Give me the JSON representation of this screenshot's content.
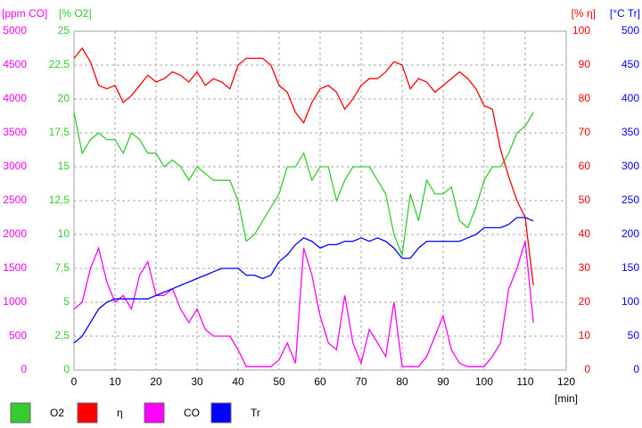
{
  "chart_data": {
    "type": "line",
    "x": [
      0,
      2,
      4,
      6,
      8,
      10,
      12,
      14,
      16,
      18,
      20,
      22,
      24,
      26,
      28,
      30,
      32,
      34,
      36,
      38,
      40,
      42,
      44,
      46,
      48,
      50,
      52,
      54,
      56,
      58,
      60,
      62,
      64,
      66,
      68,
      70,
      72,
      74,
      76,
      78,
      80,
      82,
      84,
      86,
      88,
      90,
      92,
      94,
      96,
      98,
      100,
      102,
      104,
      106,
      108,
      110,
      112
    ],
    "xlim": [
      0,
      120
    ],
    "xticks": [
      0,
      10,
      20,
      30,
      40,
      50,
      60,
      70,
      80,
      90,
      100,
      110,
      120
    ],
    "xlabel": "[min]",
    "grid": true,
    "axes": {
      "y": {
        "label": "[ppm CO]",
        "color": "#ff00ff",
        "lim": [
          0,
          5000
        ],
        "ticks": [
          0,
          500,
          1000,
          1500,
          2000,
          2500,
          3000,
          3500,
          4000,
          4500,
          5000
        ]
      },
      "y2": {
        "label": "[% O2]",
        "color": "#33cc33",
        "lim": [
          0,
          25
        ],
        "ticks": [
          0,
          {
            "value": 2.5,
            "label": "2,5"
          },
          5,
          {
            "value": 7.5,
            "label": "7,5"
          },
          10,
          {
            "value": 12.5,
            "label": "12,5"
          },
          15,
          {
            "value": 17.5,
            "label": "17,5"
          },
          20,
          {
            "value": 22.5,
            "label": "22,5"
          },
          25
        ]
      },
      "y3": {
        "label": "[% η]",
        "color": "#ff0000",
        "lim": [
          0,
          100
        ],
        "ticks": [
          0,
          10,
          20,
          30,
          40,
          50,
          60,
          70,
          80,
          90,
          100
        ]
      },
      "y4": {
        "label": "[°C Tr]",
        "color": "#0000ff",
        "lim": [
          0,
          500
        ],
        "ticks": [
          0,
          50,
          100,
          150,
          200,
          250,
          300,
          350,
          400,
          450,
          500
        ]
      }
    },
    "series": [
      {
        "name": "O2",
        "color": "#33cc33",
        "axis": "y2",
        "values": [
          19,
          16,
          17,
          17.5,
          17,
          17,
          16,
          17.5,
          17,
          16,
          16,
          15,
          15.5,
          15,
          14,
          15,
          14.5,
          14,
          14,
          14,
          12.5,
          9.5,
          10,
          11,
          12,
          13,
          15,
          15,
          16,
          14,
          15,
          15,
          12.5,
          14,
          15,
          15,
          15,
          14,
          13,
          10,
          8.5,
          13,
          11,
          14,
          13,
          13,
          13.5,
          11,
          10.5,
          12,
          14,
          15,
          15,
          16,
          17.5,
          18,
          19
        ]
      },
      {
        "name": "η",
        "color": "#ff0000",
        "axis": "y3",
        "values": [
          92,
          95,
          91,
          84,
          83,
          84,
          79,
          81,
          84,
          87,
          85,
          86,
          88,
          87,
          85,
          88,
          84,
          86,
          85,
          83,
          90,
          92,
          92,
          92,
          90,
          84,
          82,
          76,
          73,
          79,
          83,
          84,
          82,
          77,
          80,
          84,
          86,
          86,
          88,
          91,
          90,
          83,
          86,
          85,
          82,
          84,
          86,
          88,
          86,
          83,
          78,
          77,
          65,
          57,
          50,
          45,
          25
        ]
      },
      {
        "name": "CO",
        "color": "#ff00ff",
        "axis": "y",
        "values": [
          900,
          1000,
          1500,
          1800,
          1300,
          1000,
          1100,
          900,
          1400,
          1600,
          1100,
          1100,
          1200,
          900,
          700,
          900,
          600,
          500,
          500,
          500,
          300,
          50,
          50,
          50,
          50,
          150,
          400,
          100,
          1800,
          1400,
          800,
          400,
          300,
          1100,
          400,
          100,
          600,
          400,
          200,
          1000,
          50,
          50,
          50,
          200,
          500,
          800,
          300,
          100,
          50,
          50,
          50,
          200,
          400,
          1200,
          1500,
          1900,
          700
        ]
      },
      {
        "name": "Tr",
        "color": "#0000ff",
        "axis": "y4",
        "values": [
          40,
          50,
          70,
          90,
          100,
          105,
          105,
          105,
          105,
          105,
          110,
          115,
          120,
          125,
          130,
          135,
          140,
          145,
          150,
          150,
          150,
          140,
          140,
          135,
          140,
          160,
          170,
          185,
          195,
          190,
          180,
          185,
          185,
          190,
          190,
          195,
          190,
          195,
          190,
          180,
          165,
          165,
          180,
          190,
          190,
          190,
          190,
          190,
          195,
          200,
          210,
          210,
          210,
          215,
          225,
          225,
          220
        ]
      }
    ]
  }
}
